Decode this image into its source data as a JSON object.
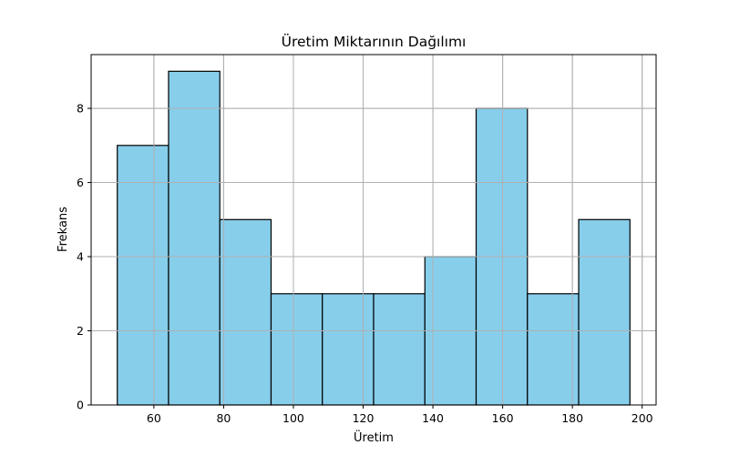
{
  "chart_data": {
    "type": "bar",
    "subtype": "histogram",
    "title": "Üretim Miktarının Dağılımı",
    "xlabel": "Üretim",
    "ylabel": "Frekans",
    "bins": [
      {
        "start": 49.5,
        "end": 64.2,
        "count": 7
      },
      {
        "start": 64.2,
        "end": 78.9,
        "count": 9
      },
      {
        "start": 78.9,
        "end": 93.6,
        "count": 5
      },
      {
        "start": 93.6,
        "end": 108.3,
        "count": 3
      },
      {
        "start": 108.3,
        "end": 123.0,
        "count": 3
      },
      {
        "start": 123.0,
        "end": 137.7,
        "count": 3
      },
      {
        "start": 137.7,
        "end": 152.4,
        "count": 4
      },
      {
        "start": 152.4,
        "end": 167.1,
        "count": 8
      },
      {
        "start": 167.1,
        "end": 181.8,
        "count": 3
      },
      {
        "start": 181.8,
        "end": 196.5,
        "count": 5
      }
    ],
    "xlim": [
      42.0,
      204.0
    ],
    "ylim": [
      0,
      9.45
    ],
    "xticks": [
      60,
      80,
      100,
      120,
      140,
      160,
      180,
      200
    ],
    "yticks": [
      0,
      2,
      4,
      6,
      8
    ],
    "grid": true,
    "bar_color": "#87ceeb",
    "edge_color": "#000000",
    "grid_color": "#b0b0b0"
  }
}
